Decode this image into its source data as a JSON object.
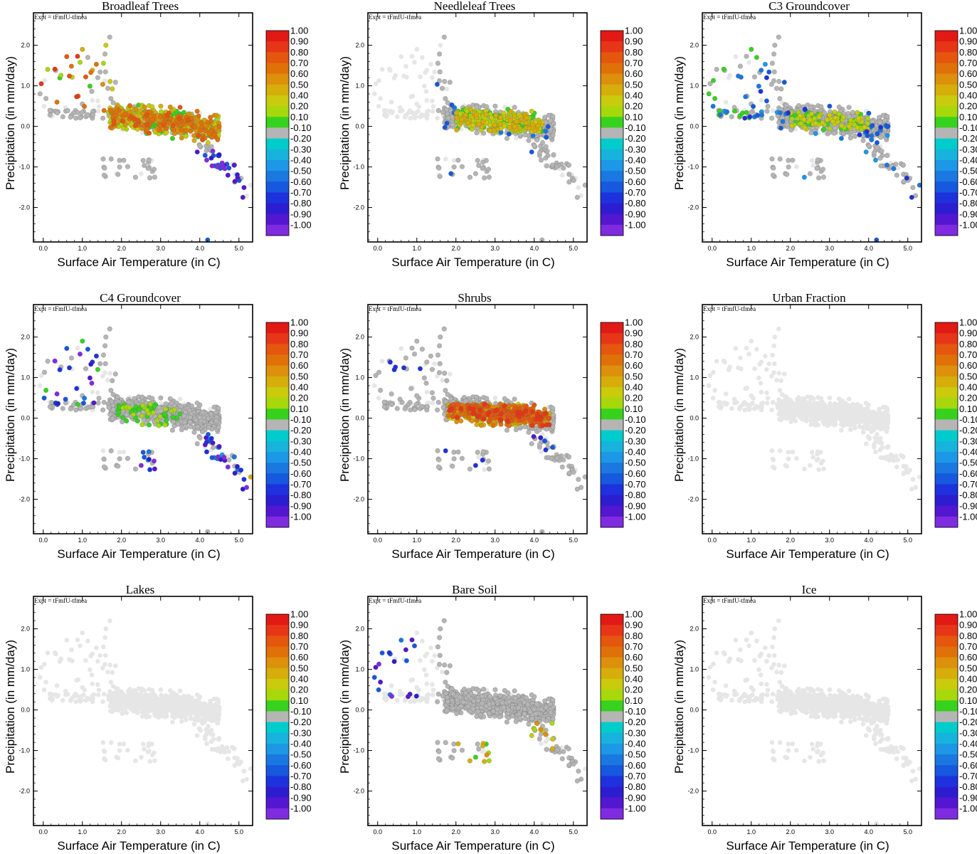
{
  "figure": {
    "expt_label": "Expt = tFmfU-tfmea",
    "xlabel": "Surface Air Temperature (in C)",
    "ylabel": "Precipitation (in mm/day)"
  },
  "chart_data": {
    "type": "scatter",
    "layout": "3x3 grid of scatter panels, each with a vertical colorbar",
    "xlim": [
      -0.25,
      5.35
    ],
    "ylim": [
      -2.85,
      2.8
    ],
    "x_ticks": [
      "0.0",
      "1.0",
      "2.0",
      "3.0",
      "4.0",
      "5.0"
    ],
    "y_ticks": [
      "2.0",
      "1.0",
      "0.0",
      "-1.0",
      "-2.0"
    ],
    "x_tick_values": [
      0,
      1,
      2,
      3,
      4,
      5
    ],
    "y_tick_values": [
      2,
      1,
      0,
      -1,
      -2
    ],
    "colorbar": {
      "labels": [
        "1.00",
        "0.90",
        "0.80",
        "0.70",
        "0.60",
        "0.50",
        "0.40",
        "0.20",
        "0.10",
        "-0.10",
        "-0.20",
        "-0.30",
        "-0.40",
        "-0.50",
        "-0.60",
        "-0.70",
        "-0.80",
        "-0.90",
        "-1.00"
      ],
      "colors": [
        "#e11a16",
        "#e63617",
        "#e5560f",
        "#e07108",
        "#dd900c",
        "#d6ad0b",
        "#c9cb0c",
        "#a6d80c",
        "#36d21e",
        "#b5b5b5",
        "#00cccc",
        "#17b3dd",
        "#1c98e6",
        "#1a78e0",
        "#1658de",
        "#1d32dc",
        "#2d1dd1",
        "#5317cf",
        "#7f2be0"
      ]
    },
    "background_point_color": "#e6e6e6",
    "neutral_point_color": "#b5b5b5",
    "panels": [
      {
        "title": "Broadleaf Trees",
        "description": "many points coloured; positive values (green/yellow/orange) dominate near x 1.5-4.5, y -0.3 to 0.5; scattered negative (blue) points at high x"
      },
      {
        "title": "Needleleaf Trees",
        "description": "positive (green/yellow) band near x 2.0-4.0, y 0.0-0.4; few cyan points"
      },
      {
        "title": "C3 Groundcover",
        "description": "mostly neutral grey with green/yellow and cyan points near x 2.0-4.0"
      },
      {
        "title": "C4 Groundcover",
        "description": "green points in centre, blue/cyan points along lower-right edge, a few orange points"
      },
      {
        "title": "Shrubs",
        "description": "orange/red cluster near x 2.0-4.0, y 0.0-0.3, green and blue points scattered"
      },
      {
        "title": "Urban Fraction",
        "description": "all points light grey (no signal)"
      },
      {
        "title": "Lakes",
        "description": "all points light grey (no signal)"
      },
      {
        "title": "Bare Soil",
        "description": "grey cluster with green/yellow points below zero near x 2.0-4.0, cyan/blue points at low x"
      },
      {
        "title": "Ice",
        "description": "all points light grey (no signal)"
      }
    ]
  }
}
